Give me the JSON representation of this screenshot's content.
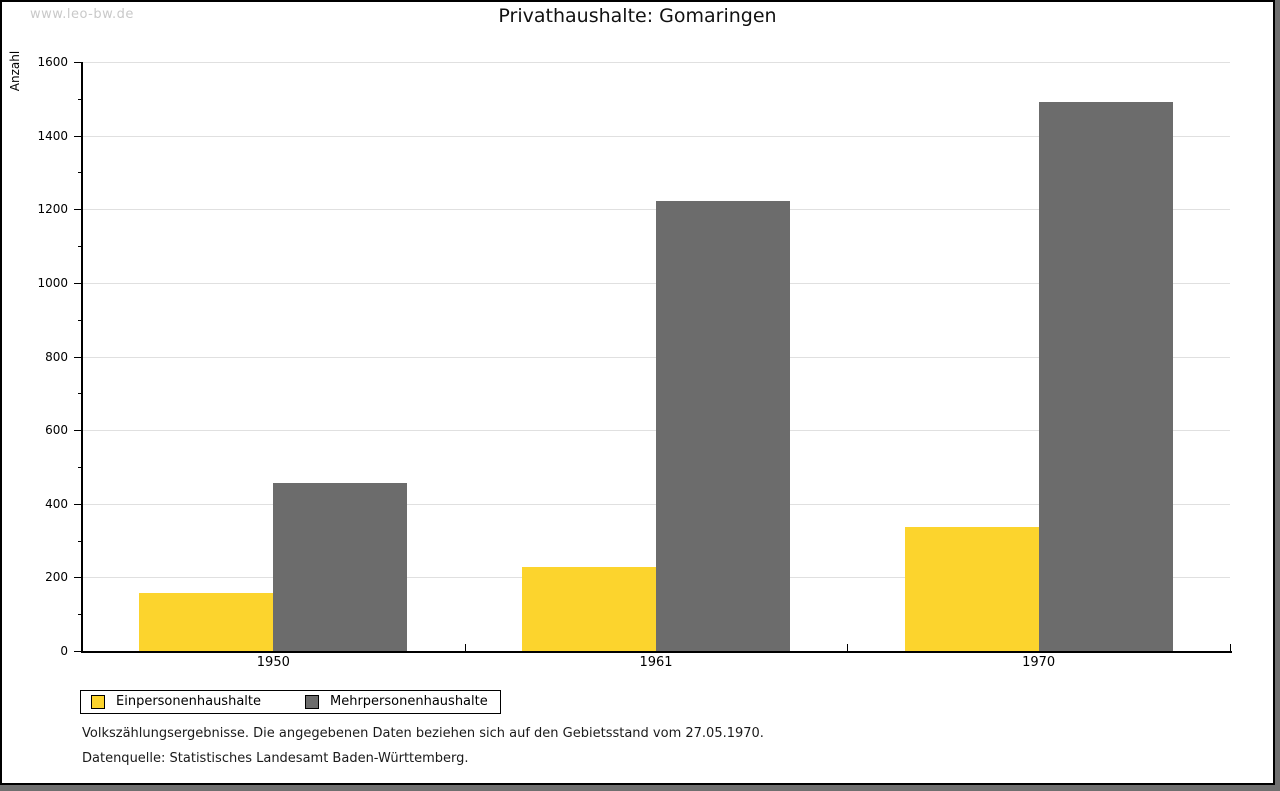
{
  "watermark": "www.leo-bw.de",
  "chart_data": {
    "type": "bar",
    "title": "Privathaushalte: Gomaringen",
    "ylabel": "Anzahl",
    "xlabel": "",
    "categories": [
      "1950",
      "1961",
      "1970"
    ],
    "series": [
      {
        "name": "Einpersonenhaushalte",
        "color": "#FCD42D",
        "values": [
          157,
          229,
          338
        ]
      },
      {
        "name": "Mehrpersonenhaushalte",
        "color": "#6C6C6C",
        "values": [
          457,
          1222,
          1490
        ]
      }
    ],
    "ylim": [
      0,
      1600
    ],
    "ytick_major_step": 200,
    "ytick_minor_step": 100,
    "grid": true,
    "gridline_color": "#E0E0E0",
    "legend_position": "bottom-left"
  },
  "footnotes": [
    "Volkszählungsergebnisse. Die angegebenen Daten beziehen sich auf den Gebietsstand vom 27.05.1970.",
    "Datenquelle: Statistisches Landesamt Baden-Württemberg."
  ]
}
